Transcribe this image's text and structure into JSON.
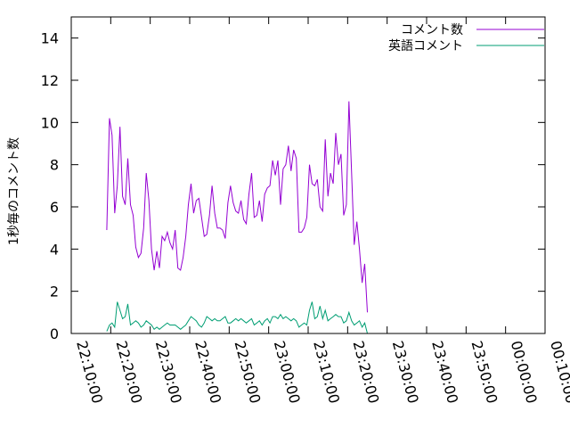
{
  "chart_data": {
    "type": "line",
    "ylabel": "1秒毎のコメント数",
    "ylim": [
      0,
      15
    ],
    "yticks": [
      0,
      2,
      4,
      6,
      8,
      10,
      12,
      14
    ],
    "xlim": [
      "22:10:00",
      "00:10:00"
    ],
    "xticks": [
      "22:10:00",
      "22:20:00",
      "22:30:00",
      "22:40:00",
      "22:50:00",
      "23:00:00",
      "23:10:00",
      "23:20:00",
      "23:30:00",
      "23:40:00",
      "23:50:00",
      "00:00:00",
      "00:10:00"
    ],
    "grid": false,
    "legend_position": "top-right",
    "series": [
      {
        "name": "コメント数",
        "color": "#9400d3",
        "points": [
          [
            "22:19:00",
            4.9
          ],
          [
            "22:19:40",
            10.2
          ],
          [
            "22:20:20",
            9.4
          ],
          [
            "22:21:00",
            5.7
          ],
          [
            "22:21:40",
            7.0
          ],
          [
            "22:22:20",
            9.8
          ],
          [
            "22:23:00",
            6.5
          ],
          [
            "22:23:40",
            6.1
          ],
          [
            "22:24:20",
            8.3
          ],
          [
            "22:25:00",
            6.1
          ],
          [
            "22:25:40",
            5.6
          ],
          [
            "22:26:20",
            4.1
          ],
          [
            "22:27:00",
            3.6
          ],
          [
            "22:27:40",
            3.8
          ],
          [
            "22:28:20",
            5.0
          ],
          [
            "22:29:00",
            7.6
          ],
          [
            "22:29:40",
            6.3
          ],
          [
            "22:30:20",
            4.0
          ],
          [
            "22:31:00",
            3.0
          ],
          [
            "22:31:40",
            3.9
          ],
          [
            "22:32:20",
            3.1
          ],
          [
            "22:33:00",
            4.6
          ],
          [
            "22:33:40",
            4.4
          ],
          [
            "22:34:20",
            4.8
          ],
          [
            "22:35:00",
            4.3
          ],
          [
            "22:35:40",
            4.0
          ],
          [
            "22:36:20",
            4.9
          ],
          [
            "22:37:00",
            3.1
          ],
          [
            "22:37:40",
            3.0
          ],
          [
            "22:38:20",
            3.6
          ],
          [
            "22:39:00",
            4.6
          ],
          [
            "22:39:40",
            6.1
          ],
          [
            "22:40:20",
            7.1
          ],
          [
            "22:41:00",
            5.7
          ],
          [
            "22:41:40",
            6.3
          ],
          [
            "22:42:20",
            6.4
          ],
          [
            "22:43:00",
            5.5
          ],
          [
            "22:43:40",
            4.6
          ],
          [
            "22:44:20",
            4.7
          ],
          [
            "22:45:00",
            5.6
          ],
          [
            "22:45:40",
            7.0
          ],
          [
            "22:46:20",
            5.7
          ],
          [
            "22:47:00",
            5.0
          ],
          [
            "22:47:40",
            5.0
          ],
          [
            "22:48:20",
            4.9
          ],
          [
            "22:49:00",
            4.5
          ],
          [
            "22:49:40",
            6.2
          ],
          [
            "22:50:20",
            7.0
          ],
          [
            "22:51:00",
            6.2
          ],
          [
            "22:51:40",
            5.8
          ],
          [
            "22:52:20",
            5.7
          ],
          [
            "22:53:00",
            6.3
          ],
          [
            "22:53:40",
            5.4
          ],
          [
            "22:54:20",
            5.2
          ],
          [
            "22:55:00",
            6.6
          ],
          [
            "22:55:40",
            7.6
          ],
          [
            "22:56:20",
            5.5
          ],
          [
            "22:57:00",
            5.6
          ],
          [
            "22:57:40",
            6.3
          ],
          [
            "22:58:20",
            5.3
          ],
          [
            "22:59:00",
            6.6
          ],
          [
            "22:59:40",
            6.9
          ],
          [
            "23:00:20",
            7.0
          ],
          [
            "23:01:00",
            8.2
          ],
          [
            "23:01:40",
            7.5
          ],
          [
            "23:02:20",
            8.2
          ],
          [
            "23:03:00",
            6.1
          ],
          [
            "23:03:40",
            7.8
          ],
          [
            "23:04:20",
            8.0
          ],
          [
            "23:05:00",
            8.9
          ],
          [
            "23:05:40",
            7.7
          ],
          [
            "23:06:20",
            8.7
          ],
          [
            "23:07:00",
            8.3
          ],
          [
            "23:07:40",
            4.8
          ],
          [
            "23:08:20",
            4.8
          ],
          [
            "23:09:00",
            5.0
          ],
          [
            "23:09:40",
            5.5
          ],
          [
            "23:10:20",
            8.0
          ],
          [
            "23:11:00",
            7.1
          ],
          [
            "23:11:40",
            7.0
          ],
          [
            "23:12:20",
            7.3
          ],
          [
            "23:13:00",
            6.0
          ],
          [
            "23:13:40",
            5.8
          ],
          [
            "23:14:20",
            9.2
          ],
          [
            "23:15:00",
            6.5
          ],
          [
            "23:15:40",
            7.6
          ],
          [
            "23:16:20",
            7.1
          ],
          [
            "23:17:00",
            9.5
          ],
          [
            "23:17:40",
            8.0
          ],
          [
            "23:18:20",
            8.5
          ],
          [
            "23:19:00",
            5.6
          ],
          [
            "23:19:40",
            6.1
          ],
          [
            "23:20:20",
            11.0
          ],
          [
            "23:21:00",
            7.6
          ],
          [
            "23:21:40",
            4.2
          ],
          [
            "23:22:20",
            5.3
          ],
          [
            "23:23:00",
            4.0
          ],
          [
            "23:23:40",
            2.4
          ],
          [
            "23:24:20",
            3.3
          ],
          [
            "23:25:00",
            1.0
          ]
        ]
      },
      {
        "name": "英語コメント",
        "color": "#009e73",
        "points": [
          [
            "22:19:00",
            0.1
          ],
          [
            "22:19:40",
            0.4
          ],
          [
            "22:20:20",
            0.5
          ],
          [
            "22:21:00",
            0.3
          ],
          [
            "22:21:40",
            1.5
          ],
          [
            "22:22:20",
            1.1
          ],
          [
            "22:23:00",
            0.7
          ],
          [
            "22:23:40",
            0.8
          ],
          [
            "22:24:20",
            1.4
          ],
          [
            "22:25:00",
            0.4
          ],
          [
            "22:25:40",
            0.5
          ],
          [
            "22:26:20",
            0.6
          ],
          [
            "22:27:00",
            0.5
          ],
          [
            "22:27:40",
            0.3
          ],
          [
            "22:28:20",
            0.4
          ],
          [
            "22:29:00",
            0.6
          ],
          [
            "22:29:40",
            0.5
          ],
          [
            "22:30:20",
            0.4
          ],
          [
            "22:31:00",
            0.2
          ],
          [
            "22:31:40",
            0.3
          ],
          [
            "22:32:20",
            0.2
          ],
          [
            "22:33:00",
            0.3
          ],
          [
            "22:33:40",
            0.4
          ],
          [
            "22:34:20",
            0.5
          ],
          [
            "22:35:00",
            0.4
          ],
          [
            "22:35:40",
            0.4
          ],
          [
            "22:36:20",
            0.4
          ],
          [
            "22:37:00",
            0.3
          ],
          [
            "22:37:40",
            0.2
          ],
          [
            "22:38:20",
            0.3
          ],
          [
            "22:39:00",
            0.4
          ],
          [
            "22:39:40",
            0.6
          ],
          [
            "22:40:20",
            0.8
          ],
          [
            "22:41:00",
            0.7
          ],
          [
            "22:41:40",
            0.6
          ],
          [
            "22:42:20",
            0.4
          ],
          [
            "22:43:00",
            0.3
          ],
          [
            "22:43:40",
            0.5
          ],
          [
            "22:44:20",
            0.8
          ],
          [
            "22:45:00",
            0.7
          ],
          [
            "22:45:40",
            0.6
          ],
          [
            "22:46:20",
            0.7
          ],
          [
            "22:47:00",
            0.6
          ],
          [
            "22:47:40",
            0.6
          ],
          [
            "22:48:20",
            0.7
          ],
          [
            "22:49:00",
            0.8
          ],
          [
            "22:49:40",
            0.5
          ],
          [
            "22:50:20",
            0.5
          ],
          [
            "22:51:00",
            0.6
          ],
          [
            "22:51:40",
            0.7
          ],
          [
            "22:52:20",
            0.6
          ],
          [
            "22:53:00",
            0.7
          ],
          [
            "22:53:40",
            0.6
          ],
          [
            "22:54:20",
            0.5
          ],
          [
            "22:55:00",
            0.6
          ],
          [
            "22:55:40",
            0.7
          ],
          [
            "22:56:20",
            0.4
          ],
          [
            "22:57:00",
            0.5
          ],
          [
            "22:57:40",
            0.6
          ],
          [
            "22:58:20",
            0.4
          ],
          [
            "22:59:00",
            0.6
          ],
          [
            "22:59:40",
            0.7
          ],
          [
            "23:00:20",
            0.5
          ],
          [
            "23:01:00",
            0.8
          ],
          [
            "23:01:40",
            0.8
          ],
          [
            "23:02:20",
            0.7
          ],
          [
            "23:03:00",
            0.9
          ],
          [
            "23:03:40",
            0.7
          ],
          [
            "23:04:20",
            0.8
          ],
          [
            "23:05:00",
            0.7
          ],
          [
            "23:05:40",
            0.6
          ],
          [
            "23:06:20",
            0.7
          ],
          [
            "23:07:00",
            0.6
          ],
          [
            "23:07:40",
            0.3
          ],
          [
            "23:08:20",
            0.4
          ],
          [
            "23:09:00",
            0.5
          ],
          [
            "23:09:40",
            0.4
          ],
          [
            "23:10:20",
            1.1
          ],
          [
            "23:11:00",
            1.5
          ],
          [
            "23:11:40",
            0.7
          ],
          [
            "23:12:20",
            0.8
          ],
          [
            "23:13:00",
            1.3
          ],
          [
            "23:13:40",
            0.7
          ],
          [
            "23:14:20",
            1.1
          ],
          [
            "23:15:00",
            0.6
          ],
          [
            "23:15:40",
            0.7
          ],
          [
            "23:16:20",
            0.8
          ],
          [
            "23:17:00",
            0.9
          ],
          [
            "23:17:40",
            0.8
          ],
          [
            "23:18:20",
            0.8
          ],
          [
            "23:19:00",
            0.5
          ],
          [
            "23:19:40",
            0.6
          ],
          [
            "23:20:20",
            1.0
          ],
          [
            "23:21:00",
            0.6
          ],
          [
            "23:21:40",
            0.4
          ],
          [
            "23:22:20",
            0.5
          ],
          [
            "23:23:00",
            0.6
          ],
          [
            "23:23:40",
            0.3
          ],
          [
            "23:24:20",
            0.5
          ],
          [
            "23:25:00",
            0.0
          ]
        ]
      }
    ]
  }
}
